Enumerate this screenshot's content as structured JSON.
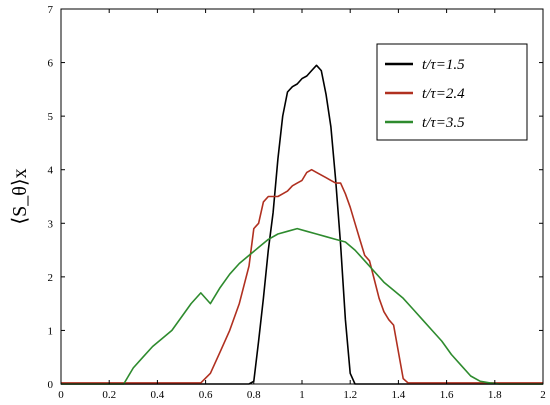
{
  "chart_data": {
    "type": "line",
    "ylabel": "⟨S_θ⟩x",
    "xlim": [
      0,
      2
    ],
    "ylim": [
      0,
      7
    ],
    "x_ticks": [
      "0",
      "0.2",
      "0.4",
      "0.6",
      "0.8",
      "1",
      "1.2",
      "1.4",
      "1.6",
      "1.8",
      "2"
    ],
    "y_ticks": [
      "0",
      "1",
      "2",
      "3",
      "4",
      "5",
      "6",
      "7"
    ],
    "grid": false,
    "legend_position": "top-right",
    "series": [
      {
        "name": "t/τ=1.5",
        "color": "#000000",
        "x": [
          0,
          0.78,
          0.8,
          0.82,
          0.84,
          0.86,
          0.88,
          0.9,
          0.92,
          0.94,
          0.96,
          0.98,
          1.0,
          1.02,
          1.04,
          1.06,
          1.08,
          1.1,
          1.12,
          1.14,
          1.16,
          1.18,
          1.2,
          1.22,
          2.0
        ],
        "y": [
          0,
          0,
          0.05,
          0.8,
          1.6,
          2.5,
          3.2,
          4.2,
          5.0,
          5.45,
          5.55,
          5.6,
          5.7,
          5.75,
          5.85,
          5.95,
          5.85,
          5.4,
          4.8,
          3.8,
          2.6,
          1.2,
          0.2,
          0,
          0
        ]
      },
      {
        "name": "t/τ=2.4",
        "color": "#b03020",
        "x": [
          0,
          0.58,
          0.62,
          0.66,
          0.7,
          0.74,
          0.78,
          0.8,
          0.82,
          0.84,
          0.86,
          0.88,
          0.9,
          0.92,
          0.94,
          0.96,
          0.98,
          1.0,
          1.02,
          1.04,
          1.06,
          1.08,
          1.1,
          1.12,
          1.14,
          1.16,
          1.18,
          1.2,
          1.22,
          1.24,
          1.26,
          1.28,
          1.3,
          1.32,
          1.34,
          1.36,
          1.38,
          1.4,
          1.42,
          1.44,
          2.0
        ],
        "y": [
          0.02,
          0.02,
          0.2,
          0.6,
          1.0,
          1.5,
          2.2,
          2.9,
          3.0,
          3.4,
          3.5,
          3.5,
          3.5,
          3.55,
          3.6,
          3.7,
          3.75,
          3.8,
          3.95,
          4.0,
          3.95,
          3.9,
          3.85,
          3.8,
          3.75,
          3.75,
          3.55,
          3.3,
          3.0,
          2.7,
          2.4,
          2.3,
          1.95,
          1.6,
          1.35,
          1.2,
          1.1,
          0.6,
          0.1,
          0.02,
          0.02
        ]
      },
      {
        "name": "t/τ=3.5",
        "color": "#2e8b2e",
        "x": [
          0,
          0.26,
          0.3,
          0.34,
          0.38,
          0.42,
          0.46,
          0.5,
          0.54,
          0.58,
          0.62,
          0.66,
          0.7,
          0.74,
          0.78,
          0.82,
          0.86,
          0.9,
          0.94,
          0.98,
          1.02,
          1.06,
          1.1,
          1.14,
          1.18,
          1.22,
          1.26,
          1.3,
          1.34,
          1.38,
          1.42,
          1.46,
          1.5,
          1.54,
          1.58,
          1.62,
          1.66,
          1.7,
          1.74,
          1.78,
          1.82,
          2.0
        ],
        "y": [
          0,
          0,
          0.3,
          0.5,
          0.7,
          0.85,
          1.0,
          1.25,
          1.5,
          1.7,
          1.5,
          1.8,
          2.05,
          2.25,
          2.4,
          2.55,
          2.7,
          2.8,
          2.85,
          2.9,
          2.85,
          2.8,
          2.75,
          2.7,
          2.65,
          2.5,
          2.3,
          2.1,
          1.9,
          1.75,
          1.6,
          1.4,
          1.2,
          1.0,
          0.8,
          0.55,
          0.35,
          0.15,
          0.05,
          0.02,
          0,
          0
        ]
      }
    ]
  }
}
